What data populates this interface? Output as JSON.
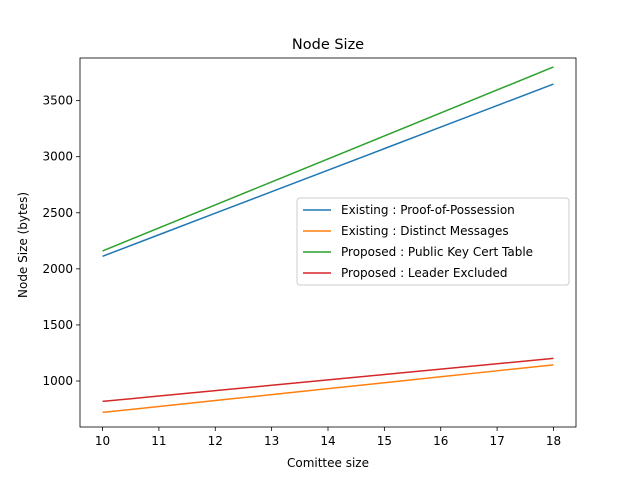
{
  "chart_data": {
    "type": "line",
    "title": "Node Size",
    "xlabel": "Comittee size",
    "ylabel": "Node Size (bytes)",
    "x": [
      10,
      11,
      12,
      13,
      14,
      15,
      16,
      17,
      18
    ],
    "xlim": [
      9.6,
      18.4
    ],
    "ylim": [
      590,
      3880
    ],
    "xticks": [
      "10",
      "11",
      "12",
      "13",
      "14",
      "15",
      "16",
      "17",
      "18"
    ],
    "yticks": [
      "1000",
      "1500",
      "2000",
      "2500",
      "3000",
      "3500"
    ],
    "grid": false,
    "legend_position": "center-right",
    "series": [
      {
        "name": "Existing : Proof-of-Possession",
        "color": "#1f77b4",
        "values": [
          2112,
          2304,
          2496,
          2688,
          2880,
          3072,
          3264,
          3456,
          3648
        ]
      },
      {
        "name": "Existing : Distinct Messages",
        "color": "#ff7f0e",
        "values": [
          720,
          773,
          826,
          879,
          932,
          985,
          1038,
          1091,
          1144
        ]
      },
      {
        "name": "Proposed : Public Key Cert Table",
        "color": "#2ca02c",
        "values": [
          2160,
          2365,
          2570,
          2775,
          2980,
          3185,
          3390,
          3595,
          3800
        ]
      },
      {
        "name": "Proposed : Leader Excluded",
        "color": "#d62728",
        "values": [
          818,
          866,
          914,
          962,
          1010,
          1058,
          1106,
          1154,
          1202
        ]
      }
    ]
  }
}
